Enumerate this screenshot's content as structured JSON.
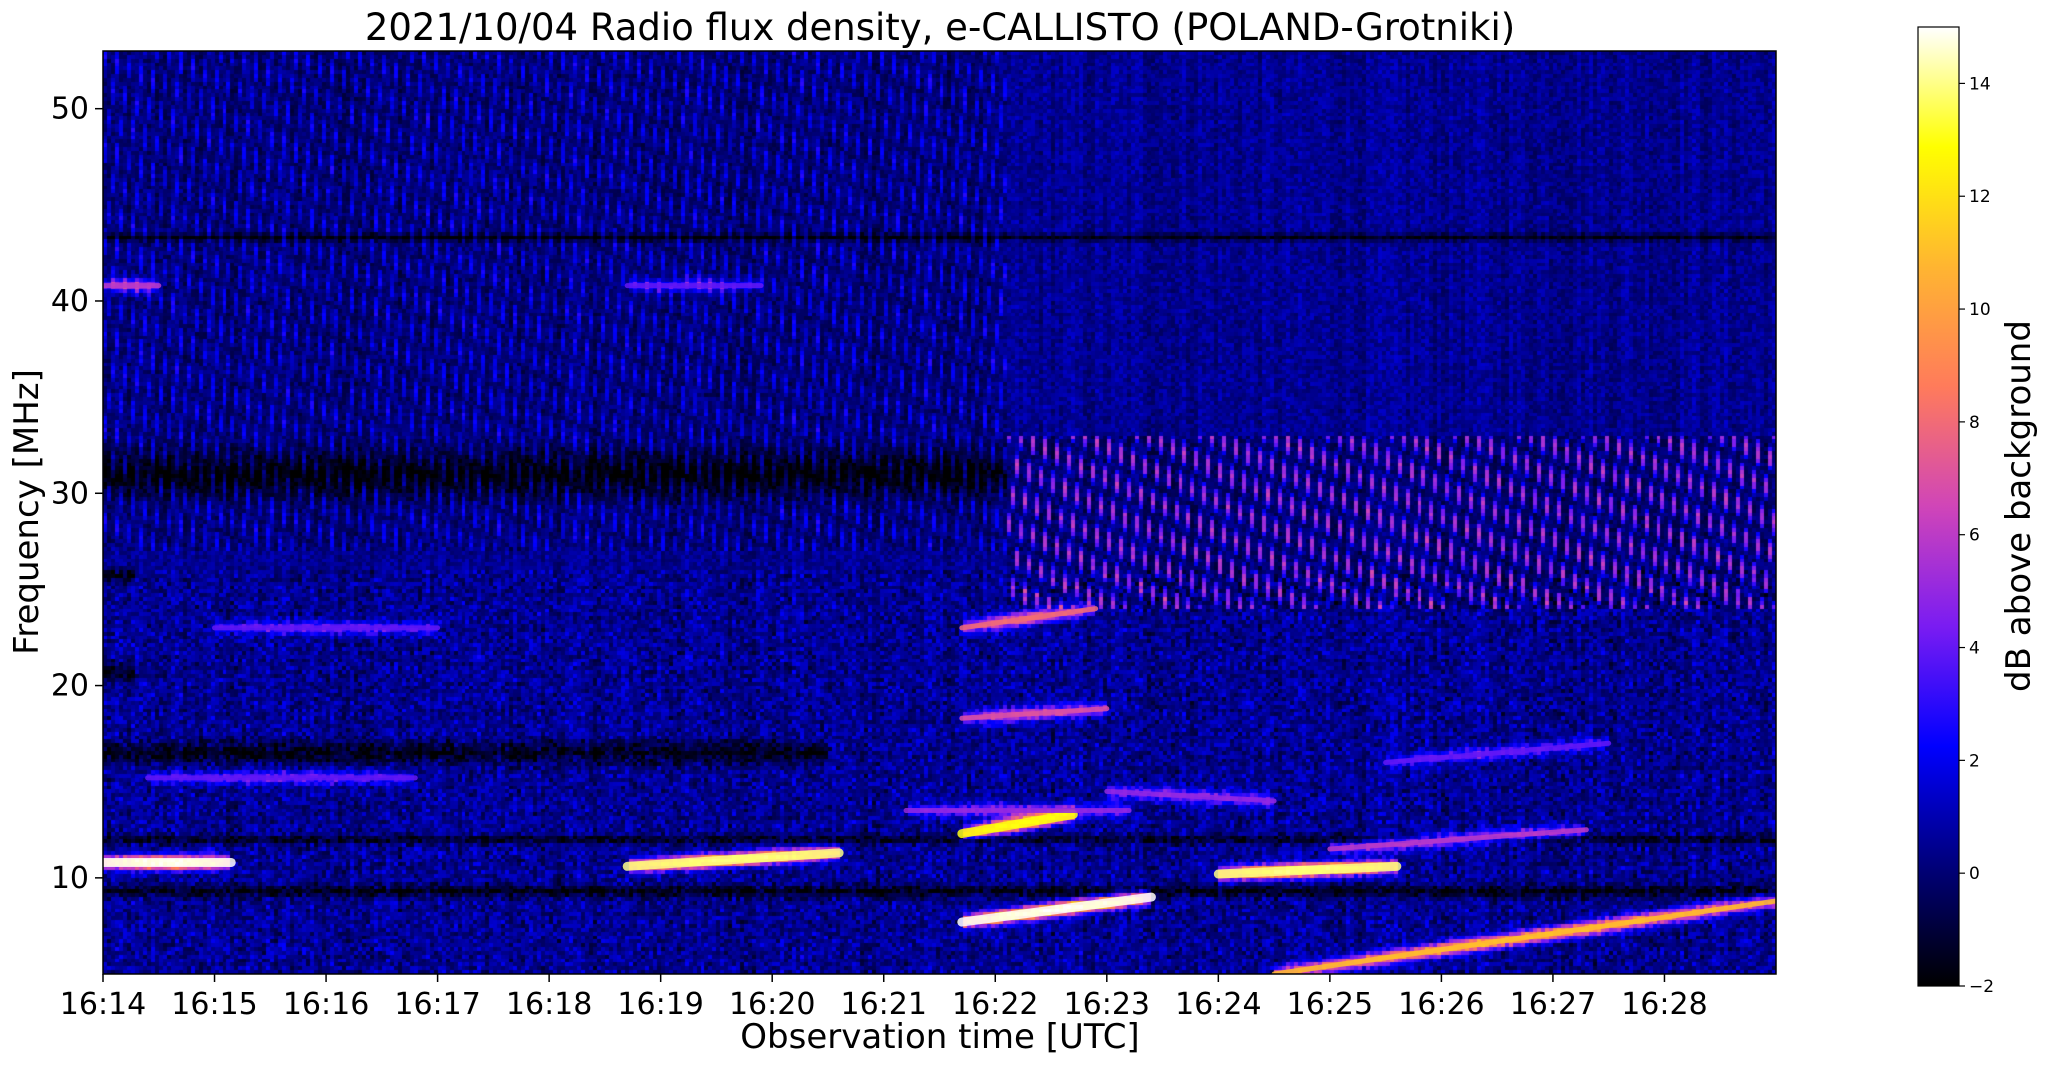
{
  "chart_data": {
    "type": "heatmap",
    "title": "2021/10/04  Radio flux density, e-CALLISTO (POLAND-Grotniki)",
    "xlabel": "Observation time [UTC]",
    "ylabel": "Frequency [MHz]",
    "colorbar_label": "dB above background",
    "colormap": "gnuplot2",
    "colormap_stops": [
      "#000000",
      "#00007a",
      "#0000ff",
      "#7a1cf2",
      "#d045b8",
      "#ff7b5b",
      "#ffb531",
      "#ffff00",
      "#ffffff"
    ],
    "x_ticks": [
      "16:14",
      "16:15",
      "16:16",
      "16:17",
      "16:18",
      "16:19",
      "16:20",
      "16:21",
      "16:22",
      "16:23",
      "16:24",
      "16:25",
      "16:26",
      "16:27",
      "16:28"
    ],
    "x_range_minutes": [
      0,
      15.0
    ],
    "y_ticks": [
      10,
      20,
      30,
      40,
      50
    ],
    "ylim": [
      5,
      53
    ],
    "clim": [
      -2,
      15
    ],
    "colorbar_ticks": [
      -2,
      0,
      2,
      4,
      6,
      8,
      10,
      12,
      14
    ],
    "background_level_db": 0.5,
    "bursts": [
      {
        "t_start": 0.0,
        "t_end": 1.15,
        "f_start": 10.8,
        "f_end": 10.8,
        "peak_db": 15
      },
      {
        "t_start": 4.7,
        "t_end": 6.6,
        "f_start": 10.6,
        "f_end": 11.3,
        "peak_db": 14
      },
      {
        "t_start": 7.7,
        "t_end": 8.7,
        "f_start": 12.3,
        "f_end": 13.3,
        "peak_db": 13
      },
      {
        "t_start": 7.7,
        "t_end": 9.4,
        "f_start": 7.7,
        "f_end": 9.0,
        "peak_db": 15
      },
      {
        "t_start": 7.7,
        "t_end": 8.9,
        "f_start": 23.0,
        "f_end": 24.0,
        "peak_db": 8
      },
      {
        "t_start": 7.7,
        "t_end": 9.0,
        "f_start": 18.3,
        "f_end": 18.8,
        "peak_db": 7
      },
      {
        "t_start": 10.0,
        "t_end": 11.6,
        "f_start": 10.2,
        "f_end": 10.6,
        "peak_db": 14
      },
      {
        "t_start": 10.5,
        "t_end": 15.0,
        "f_start": 5.0,
        "f_end": 8.8,
        "peak_db": 11
      },
      {
        "t_start": 11.0,
        "t_end": 13.3,
        "f_start": 11.5,
        "f_end": 12.5,
        "peak_db": 6
      },
      {
        "t_start": 0.4,
        "t_end": 2.8,
        "f_start": 15.2,
        "f_end": 15.2,
        "peak_db": 4
      },
      {
        "t_start": 7.2,
        "t_end": 9.2,
        "f_start": 13.5,
        "f_end": 13.5,
        "peak_db": 5
      },
      {
        "t_start": 11.5,
        "t_end": 13.5,
        "f_start": 16.0,
        "f_end": 17.0,
        "peak_db": 4
      },
      {
        "t_start": 9.0,
        "t_end": 10.5,
        "f_start": 14.5,
        "f_end": 14.0,
        "peak_db": 5
      },
      {
        "t_start": 0.0,
        "t_end": 0.5,
        "f_start": 40.8,
        "f_end": 40.8,
        "peak_db": 6
      },
      {
        "t_start": 4.7,
        "t_end": 5.9,
        "f_start": 40.8,
        "f_end": 40.8,
        "peak_db": 4
      },
      {
        "t_start": 1.0,
        "t_end": 3.0,
        "f_start": 23.0,
        "f_end": 23.0,
        "peak_db": 4
      }
    ],
    "dark_bands": [
      {
        "t_start": 0.0,
        "t_end": 15.0,
        "f": 9.3,
        "width": 0.5
      },
      {
        "t_start": 0.0,
        "t_end": 8.1,
        "f": 31.0,
        "width": 1.8
      },
      {
        "t_start": 0.0,
        "t_end": 15.0,
        "f": 12.0,
        "width": 0.35
      },
      {
        "t_start": 0.0,
        "t_end": 6.5,
        "f": 16.5,
        "width": 0.9
      },
      {
        "t_start": 0.0,
        "t_end": 0.3,
        "f": 20.7,
        "width": 0.8
      },
      {
        "t_start": 0.0,
        "t_end": 0.3,
        "f": 25.7,
        "width": 0.6
      },
      {
        "t_start": 0.0,
        "t_end": 15.0,
        "f": 43.3,
        "width": 0.3
      }
    ],
    "drifting_stripes": [
      {
        "t_start": 8.1,
        "t_end": 15.0,
        "f_low": 24.0,
        "f_high": 33.0,
        "peak_db": 5
      },
      {
        "t_start": 0.0,
        "t_end": 8.1,
        "f_low": 27.0,
        "f_high": 53.0,
        "peak_db": 1.5
      }
    ]
  }
}
